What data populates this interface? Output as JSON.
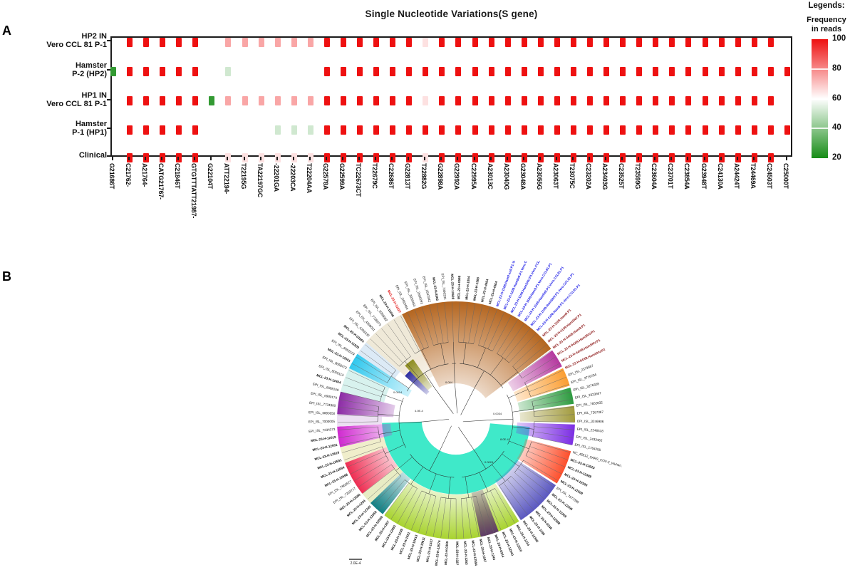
{
  "panel_a": {
    "label": "A"
  },
  "panel_b": {
    "label": "B"
  },
  "chart_data": [
    {
      "type": "heatmap",
      "title": "Single Nucleotide Variations(S gene)",
      "ylabel": "",
      "xlabel": "",
      "rows": [
        "HP2 IN Vero CCL 81 P-1",
        "Hamster P-2 (HP2)",
        "HP1 IN Vero CCL 81 P-1",
        "Hamster P-1 (HP1)",
        "Clinical"
      ],
      "row_label_lines": [
        [
          "HP2 IN",
          "Vero CCL 81 P-1"
        ],
        [
          "Hamster",
          "P-2 (HP2)"
        ],
        [
          "HP1 IN",
          "Vero CCL 81 P-1"
        ],
        [
          "Hamster",
          "P-1 (HP1)"
        ],
        [
          "Clinical"
        ]
      ],
      "columns": [
        "G21686T",
        "C21762-",
        "A21764-",
        "CATG21767-",
        "C21846T",
        "GTGTTTATT21987-",
        "G22104T",
        "ATT22194-",
        "T22195G",
        "TA22197GC",
        "-22201GA",
        "-22203CA",
        "T22204AA",
        "G22578A",
        "G22599A",
        "TC22673CT",
        "T22679C",
        "C22686T",
        "G22813T",
        "T22882G",
        "G22898A",
        "G22992A",
        "C22995A",
        "A23013C",
        "A23040G",
        "G23048A",
        "A23055G",
        "A23063T",
        "T23075C",
        "C23202A",
        "A23403G",
        "C23525T",
        "T23599G",
        "C23604A",
        "C23701T",
        "C23854A",
        "G23948T",
        "C24130A",
        "A24424T",
        "T24469A",
        "C24503T",
        "C25000T"
      ],
      "values": [
        [
          null,
          100,
          100,
          100,
          100,
          100,
          null,
          75,
          75,
          75,
          75,
          75,
          75,
          100,
          100,
          100,
          100,
          100,
          100,
          65,
          100,
          100,
          100,
          100,
          100,
          100,
          100,
          100,
          100,
          100,
          100,
          100,
          100,
          100,
          100,
          100,
          100,
          100,
          100,
          100,
          100,
          null
        ],
        [
          25,
          100,
          100,
          100,
          100,
          100,
          null,
          52,
          null,
          null,
          null,
          null,
          null,
          100,
          100,
          100,
          100,
          100,
          100,
          100,
          100,
          100,
          100,
          100,
          100,
          100,
          100,
          100,
          100,
          100,
          100,
          100,
          100,
          100,
          100,
          100,
          100,
          100,
          100,
          100,
          100,
          100
        ],
        [
          null,
          100,
          100,
          100,
          100,
          100,
          25,
          75,
          75,
          75,
          75,
          75,
          75,
          100,
          100,
          100,
          100,
          100,
          100,
          65,
          100,
          100,
          100,
          100,
          100,
          100,
          100,
          100,
          100,
          100,
          100,
          100,
          100,
          100,
          100,
          100,
          100,
          100,
          100,
          100,
          100,
          null
        ],
        [
          null,
          100,
          100,
          100,
          100,
          100,
          null,
          null,
          null,
          null,
          52,
          52,
          52,
          100,
          100,
          100,
          100,
          100,
          100,
          100,
          100,
          100,
          100,
          100,
          100,
          100,
          100,
          100,
          100,
          100,
          100,
          100,
          100,
          100,
          100,
          100,
          100,
          100,
          100,
          100,
          100,
          100
        ],
        [
          null,
          100,
          100,
          100,
          100,
          100,
          null,
          65,
          65,
          65,
          65,
          65,
          65,
          100,
          100,
          100,
          100,
          100,
          100,
          65,
          100,
          100,
          100,
          100,
          100,
          100,
          100,
          100,
          100,
          100,
          100,
          100,
          100,
          100,
          100,
          100,
          100,
          100,
          100,
          100,
          100,
          null
        ]
      ],
      "colorscale": {
        "min": 20,
        "mid": 60,
        "max": 100,
        "color_high": "#ee1111",
        "color_mid": "#ffffff",
        "color_low": "#168c16"
      },
      "legend": {
        "header": "Legends:",
        "title_lines": [
          "Frequency",
          "in reads"
        ],
        "ticks": [
          100,
          80,
          60,
          40,
          20
        ]
      }
    },
    {
      "type": "phylogenetic_tree_circular",
      "scale_bar": "2.0E-4",
      "branch_length_labels": [
        {
          "t": "0.0014",
          "x": -88,
          "y": -38
        },
        {
          "t": "4.0E-4",
          "x": -58,
          "y": -12
        },
        {
          "t": "0.004",
          "x": -15,
          "y": -52
        },
        {
          "t": "0.0034",
          "x": 52,
          "y": -8
        },
        {
          "t": "8.0E-4",
          "x": 62,
          "y": 28
        },
        {
          "t": "0.0024",
          "x": 40,
          "y": 60
        }
      ],
      "sectors": [
        {
          "a0": 95,
          "a1": 268,
          "r0": 48,
          "r1": 104,
          "c": "#3fe9c9",
          "grad": false,
          "name": "inner-turquoise"
        },
        {
          "a0": -49,
          "a1": -27,
          "r0": 70,
          "r1": 167,
          "c": "#e3cfae",
          "grad": true,
          "name": "clade-pale-tan"
        },
        {
          "a0": -27,
          "a1": 53,
          "r0": 52,
          "r1": 167,
          "c": "#b4651f",
          "grad": true,
          "name": "clade-brown"
        },
        {
          "a0": 54,
          "a1": 63,
          "r0": 90,
          "r1": 167,
          "c": "#b5399f",
          "grad": true,
          "name": "clade-magenta-purple"
        },
        {
          "a0": 64,
          "a1": 73,
          "r0": 90,
          "r1": 167,
          "c": "#fb9e32",
          "grad": true,
          "name": "clade-orange"
        },
        {
          "a0": 74,
          "a1": 82,
          "r0": 90,
          "r1": 167,
          "c": "#2e9b40",
          "grad": true,
          "name": "clade-green"
        },
        {
          "a0": 83,
          "a1": 91,
          "r0": 90,
          "r1": 167,
          "c": "#a29b3e",
          "grad": true,
          "name": "clade-olive"
        },
        {
          "a0": 92,
          "a1": 102,
          "r0": 86,
          "r1": 167,
          "c": "#7c2ee4",
          "grad": true,
          "name": "clade-violet"
        },
        {
          "a0": 105,
          "a1": 122,
          "r0": 101,
          "r1": 167,
          "c": "#fd4f2c",
          "grad": true,
          "name": "clade-orangered"
        },
        {
          "a0": 123,
          "a1": 147,
          "r0": 101,
          "r1": 167,
          "c": "#5a57c0",
          "grad": true,
          "name": "clade-indigo"
        },
        {
          "a0": 148,
          "a1": 217,
          "r0": 104,
          "r1": 167,
          "c": "#a8d32f",
          "grad": true,
          "name": "clade-lime"
        },
        {
          "a0": 159,
          "a1": 168,
          "r0": 104,
          "r1": 167,
          "c": "#5f3b68",
          "grad": true,
          "name": "clade-plum"
        },
        {
          "a0": 218,
          "a1": 226,
          "r0": 104,
          "r1": 167,
          "c": "#117f83",
          "grad": true,
          "name": "clade-teal"
        },
        {
          "a0": 226,
          "a1": 232,
          "r0": 104,
          "r1": 167,
          "c": "#e8ecc4",
          "grad": false,
          "name": "clade-pale-olive"
        },
        {
          "a0": 232,
          "a1": 249,
          "r0": 104,
          "r1": 167,
          "c": "#ee2d52",
          "grad": true,
          "name": "clade-crimson"
        },
        {
          "a0": 249,
          "a1": 257,
          "r0": 104,
          "r1": 167,
          "c": "#f0eecb",
          "grad": false,
          "name": "clade-pale-yellow"
        },
        {
          "a0": 257,
          "a1": 267,
          "r0": 92,
          "r1": 167,
          "c": "#d02ad0",
          "grad": true,
          "name": "clade-magenta"
        },
        {
          "a0": 267,
          "a1": 273,
          "r0": 104,
          "r1": 167,
          "c": "#ece0f2",
          "grad": false,
          "name": "clade-pale-lavender"
        },
        {
          "a0": 273,
          "a1": 284,
          "r0": 88,
          "r1": 167,
          "c": "#8c2ba5",
          "grad": true,
          "name": "clade-dark-purple"
        },
        {
          "a0": 284,
          "a1": 296,
          "r0": 104,
          "r1": 167,
          "c": "#d8f2ee",
          "grad": false,
          "name": "clade-pale-cyan"
        },
        {
          "a0": 296,
          "a1": 304,
          "r0": 75,
          "r1": 167,
          "c": "#31c8ee",
          "grad": true,
          "name": "clade-cyan"
        },
        {
          "a0": 304,
          "a1": 311,
          "r0": 104,
          "r1": 167,
          "c": "#dceaf6",
          "grad": false,
          "name": "clade-pale-blue"
        },
        {
          "a0": 311,
          "a1": 333,
          "r0": 104,
          "r1": 167,
          "c": "#efe9d8",
          "grad": false,
          "name": "clade-pale-tan-2"
        },
        {
          "a0": 311,
          "a1": 317,
          "r0": 55,
          "r1": 95,
          "c": "#2e2da2",
          "grad": true,
          "name": "clade-navy"
        },
        {
          "a0": 317,
          "a1": 325,
          "r0": 58,
          "r1": 105,
          "c": "#8e8e22",
          "grad": true,
          "name": "clade-dark-olive"
        }
      ],
      "leaf_classes": [
        "black",
        "black-bold",
        "blue",
        "darkred",
        "red"
      ],
      "leaves": [
        [
          "MCL-23-H-0568",
          1
        ],
        [
          "MCL-23-H-1054",
          1
        ],
        [
          "MCL-23-H-1368",
          1
        ],
        [
          "MCL-23-H-4564",
          1
        ],
        [
          "MCL-23-H-4364",
          1
        ],
        [
          "MCL-23-H-1108.Ham9-su9.P1.Vero.CCL81.P1",
          2
        ],
        [
          "MCL-23-H-1108.Ham9a9.P1.Vero.CCL81.P1",
          2
        ],
        [
          "MCL-23-H-1108.HamSNV.P1.Vero.CCL81.P1",
          2
        ],
        [
          "MCL-23-H-1109.Ham9.P1.Vero.CCL81.P1",
          2
        ],
        [
          "MCL-23-H-1109.Ham9a9.P1.Vero.CCL81.P1",
          2
        ],
        [
          "MCL-23-H-1109.HamSNV.P1.Vero.CCL81.P1",
          2
        ],
        [
          "MCL-23-H-1108.Ham9.P1.Vero.CCL81.P1",
          2
        ],
        [
          "MCL-23-H-1108.Ham9.P1",
          3
        ],
        [
          "MCL-23-H-1109.HamSNV.P1",
          3
        ],
        [
          "MCL-23-H-04XB.Ham9.P1",
          3
        ],
        [
          "MCL-23-H-04XB.HamSNV.P1",
          3
        ],
        [
          "MCL-23-H-44XB.HamSNV.P1",
          3
        ],
        [
          "MCL-23-H-04XB.HamSNV.P2",
          3
        ],
        [
          "EPI_ISL_2379667",
          0
        ],
        [
          "EPI_ISL_3716794",
          0
        ],
        [
          "EPI_ISL_3276328",
          0
        ],
        [
          "EPI_ISL_2323667",
          0
        ],
        [
          "EPI_ISL_7652832",
          0
        ],
        [
          "EPI_ISL_7267387",
          0
        ],
        [
          "EPI_ISL_3246906",
          0
        ],
        [
          "EPI_ISL_2246518",
          0
        ],
        [
          "EPI_ISL_2433462",
          0
        ],
        [
          "EPI_ISL_1764255",
          0
        ],
        [
          "NC_45512_SARS_COV-2_Wuhan.",
          0
        ],
        [
          "MCL-23-H-12623",
          1
        ],
        [
          "MCL-23-H-12488",
          1
        ],
        [
          "MCL-23-H-12500",
          1
        ],
        [
          "MCL-23-H-11509",
          1
        ],
        [
          "EPI_ISL_7677398",
          0
        ],
        [
          "MCL-23-H-12296",
          1
        ],
        [
          "MCL-23-H-12369",
          1
        ],
        [
          "MCL-23-H-12588",
          1
        ],
        [
          "MCL-23-H-0346",
          1
        ],
        [
          "MCL-23-H-1196",
          1
        ],
        [
          "MCL-23-H-12346",
          1
        ],
        [
          "MCL-23-H-1314",
          1
        ],
        [
          "MCL-23-H-12510",
          1
        ],
        [
          "MCL-23-H-12540",
          1
        ],
        [
          "MCL-23-H-0344",
          1
        ],
        [
          "MCL-23-H-1243",
          1
        ],
        [
          "MCL-23-H-1547",
          1
        ],
        [
          "MCL-23-H-12594",
          1
        ],
        [
          "MCL-23-H-1263",
          1
        ],
        [
          "MCL-23-H-1327",
          1
        ],
        [
          "MCL-23-H-0369",
          1
        ],
        [
          "MCL-23-H-12576",
          1
        ],
        [
          "MCL-23-H-1337",
          1
        ],
        [
          "MCL-23-H-10611",
          1
        ],
        [
          "MCL-23-H-10613",
          1
        ],
        [
          "MCL-23-H-1651",
          1
        ],
        [
          "MCL-23-H-1239",
          1
        ],
        [
          "MCL-23-H-12091",
          1
        ],
        [
          "MCL-23-H-1357",
          1
        ],
        [
          "MCL-23-H-12569",
          1
        ],
        [
          "MCL-23-H-12359",
          1
        ],
        [
          "MCL-23-H-12345",
          1
        ],
        [
          "MCL-23-H-1254",
          1
        ],
        [
          "MCL-23-H-12584",
          1
        ],
        [
          "EPI_ISL_7203717",
          0
        ],
        [
          "EPI_ISL_7660577",
          0
        ],
        [
          "MCL-23-H-12598",
          1
        ],
        [
          "MCL-23-H-12694",
          1
        ],
        [
          "MCL-23-H-12591",
          1
        ],
        [
          "MCL-23-H-12619",
          1
        ],
        [
          "MCL-23-H-12001",
          1
        ],
        [
          "MCL-23-H-12019",
          1
        ],
        [
          "EPI_ISL_7234373",
          0
        ],
        [
          "EPI_ISL_7000005",
          0
        ],
        [
          "EPI_ISL_6883650",
          0
        ],
        [
          "EPI_ISL_7734900",
          0
        ],
        [
          "EPI_ISL_6980174",
          0
        ],
        [
          "EPI_ISL_6698109",
          0
        ],
        [
          "MCL-23-H-12404",
          1
        ],
        [
          "EPI_ISL_8050113",
          0
        ],
        [
          "EPI_ISL_8058472",
          0
        ],
        [
          "MCL-23-H-12601",
          1
        ],
        [
          "EPI_ISL_8052029",
          0
        ],
        [
          "MCL-23-H-11503",
          1
        ],
        [
          "MCL-23-H-03364",
          1
        ],
        [
          "EPI_ISL_4299339",
          0
        ],
        [
          "EPI_ISL_4299001",
          0
        ],
        [
          "EPI_ISL_7736073",
          0
        ],
        [
          "EPI_ISL_3355082",
          0
        ],
        [
          "MCL-23-H-12646",
          1
        ],
        [
          "MCL-23-H-12627",
          4
        ],
        [
          "EPI_ISL_3463466",
          0
        ],
        [
          "EPI_ISL_3059463",
          0
        ],
        [
          "EPI_ISL_2696291",
          0
        ],
        [
          "EPI_ISL_2542042",
          0
        ],
        [
          "MCL-23-H-8362",
          1
        ],
        [
          "EPI_ISL_7396231",
          0
        ],
        [
          "MCL-23-H-12638",
          1
        ]
      ],
      "leaf_colors": {
        "black": "#111111",
        "blue": "#1818e6",
        "darkred": "#8b1515",
        "red": "#e31212"
      }
    }
  ]
}
